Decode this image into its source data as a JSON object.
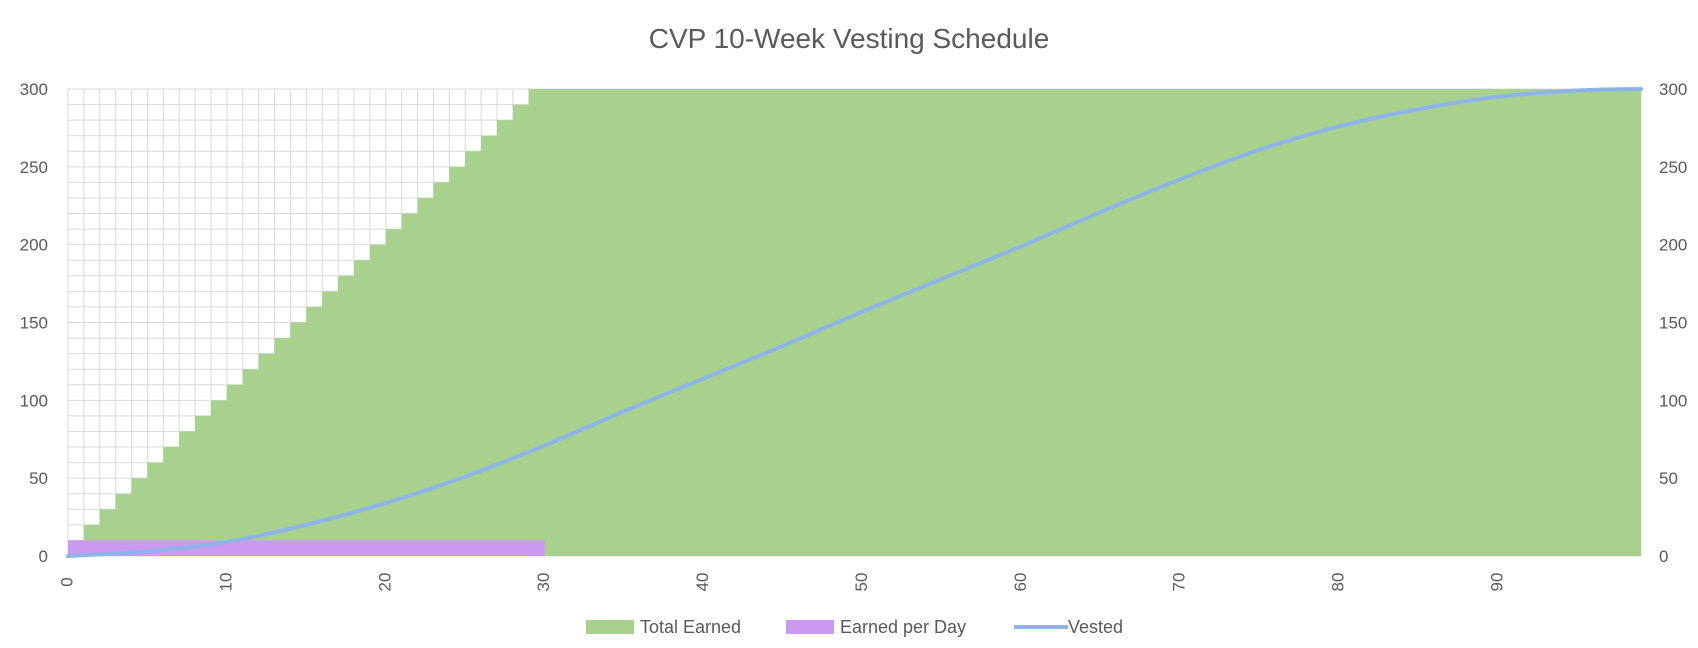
{
  "chart_data": {
    "type": "area",
    "title": "CVP 10-Week Vesting Schedule",
    "xlabel": "",
    "ylabel": "",
    "xlim": [
      0,
      99
    ],
    "ylim": [
      0,
      300
    ],
    "y2lim": [
      0,
      300
    ],
    "x_ticks": [
      0,
      10,
      20,
      30,
      40,
      50,
      60,
      70,
      80,
      90
    ],
    "y_ticks": [
      0,
      50,
      100,
      150,
      200,
      250,
      300
    ],
    "y2_ticks": [
      0,
      50,
      100,
      150,
      200,
      250,
      300
    ],
    "grid": true,
    "legend_position": "bottom",
    "colors": {
      "total_earned": "#a9d18e",
      "earned_per_day": "#cc99f0",
      "vested": "#8db4e8",
      "grid": "#d9d9d9"
    },
    "series": [
      {
        "name": "Total Earned",
        "type": "step-area",
        "x": [
          0,
          1,
          2,
          3,
          4,
          5,
          6,
          7,
          8,
          9,
          10,
          11,
          12,
          13,
          14,
          15,
          16,
          17,
          18,
          19,
          20,
          21,
          22,
          23,
          24,
          25,
          26,
          27,
          28,
          29,
          30,
          99
        ],
        "values": [
          10,
          20,
          30,
          40,
          50,
          60,
          70,
          80,
          90,
          100,
          110,
          120,
          130,
          140,
          150,
          160,
          170,
          180,
          190,
          200,
          210,
          220,
          230,
          240,
          250,
          260,
          270,
          280,
          290,
          300,
          300,
          300
        ]
      },
      {
        "name": "Earned per Day",
        "type": "bar",
        "x_range": [
          0,
          30
        ],
        "value": 10
      },
      {
        "name": "Vested",
        "type": "line",
        "x": [
          0,
          5,
          10,
          15,
          20,
          25,
          30,
          35,
          40,
          45,
          50,
          55,
          60,
          65,
          70,
          75,
          80,
          85,
          90,
          95,
          99
        ],
        "values": [
          0,
          3,
          9,
          20,
          34,
          51,
          71,
          93,
          114,
          135,
          157,
          178,
          199,
          221,
          242,
          261,
          276,
          287,
          295,
          299,
          300
        ]
      }
    ]
  },
  "legend": {
    "items": [
      {
        "label": "Total Earned",
        "color": "#a9d18e",
        "shape": "box"
      },
      {
        "label": "Earned per Day",
        "color": "#cc99f0",
        "shape": "box"
      },
      {
        "label": "Vested",
        "color": "#8db4e8",
        "shape": "line"
      }
    ]
  }
}
